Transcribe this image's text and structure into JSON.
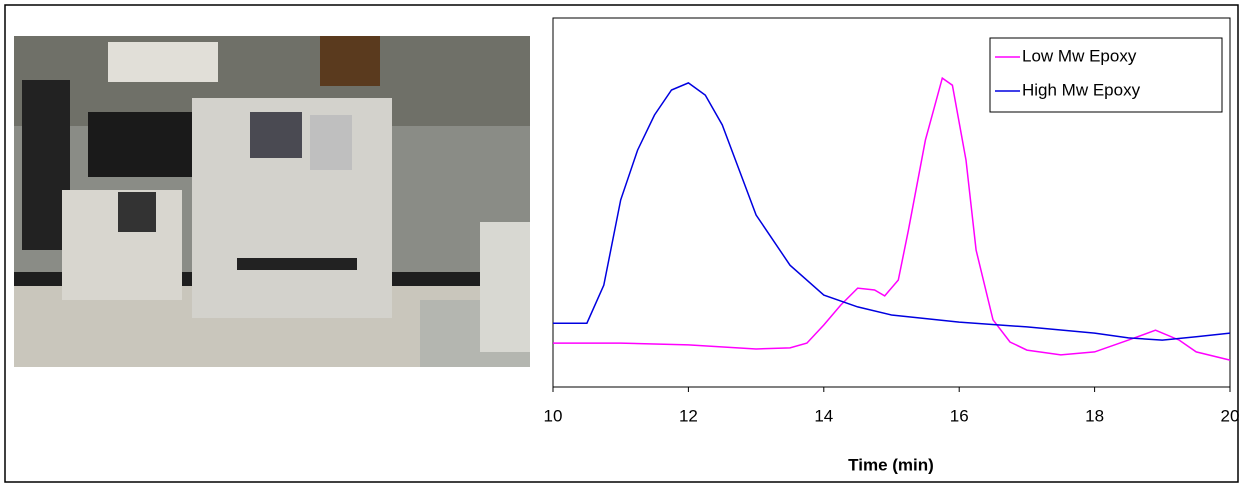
{
  "chart_data": {
    "type": "line",
    "xlabel": "Time (min)",
    "xlim": [
      10,
      20
    ],
    "xticks": [
      10,
      12,
      14,
      16,
      18,
      20
    ],
    "ylim": [
      0,
      100
    ],
    "legend": "upper right",
    "series": [
      {
        "name": "Low Mw Epoxy",
        "color": "#ff00ff",
        "x": [
          10,
          11,
          12,
          13,
          13.5,
          13.75,
          14,
          14.25,
          14.5,
          14.75,
          14.9,
          15.1,
          15.25,
          15.5,
          15.75,
          15.9,
          16.1,
          16.25,
          16.5,
          16.75,
          17,
          17.5,
          18,
          18.5,
          18.9,
          19.25,
          19.5,
          20
        ],
        "values": [
          11.9,
          11.9,
          11.4,
          10.3,
          10.6,
          11.9,
          16.8,
          22.2,
          26.8,
          26.3,
          24.7,
          29,
          42.5,
          66.9,
          83.7,
          81.8,
          61.5,
          37.1,
          18.2,
          12.2,
          10,
          8.7,
          9.5,
          12.7,
          15.4,
          12.7,
          9.5,
          7.3
        ]
      },
      {
        "name": "High Mw Epoxy",
        "color": "#0000e0",
        "x": [
          10,
          10.5,
          10.75,
          11,
          11.25,
          11.5,
          11.75,
          12,
          12.25,
          12.5,
          12.75,
          13,
          13.5,
          14,
          14.5,
          15,
          16,
          17,
          18,
          18.5,
          19,
          19.5,
          20
        ],
        "values": [
          17.3,
          17.3,
          27.6,
          50.7,
          64.2,
          73.7,
          80.5,
          82.4,
          79.1,
          71,
          58.8,
          46.6,
          33,
          24.9,
          21.7,
          19.5,
          17.6,
          16.3,
          14.6,
          13.3,
          12.7,
          13.6,
          14.6
        ]
      }
    ]
  }
}
